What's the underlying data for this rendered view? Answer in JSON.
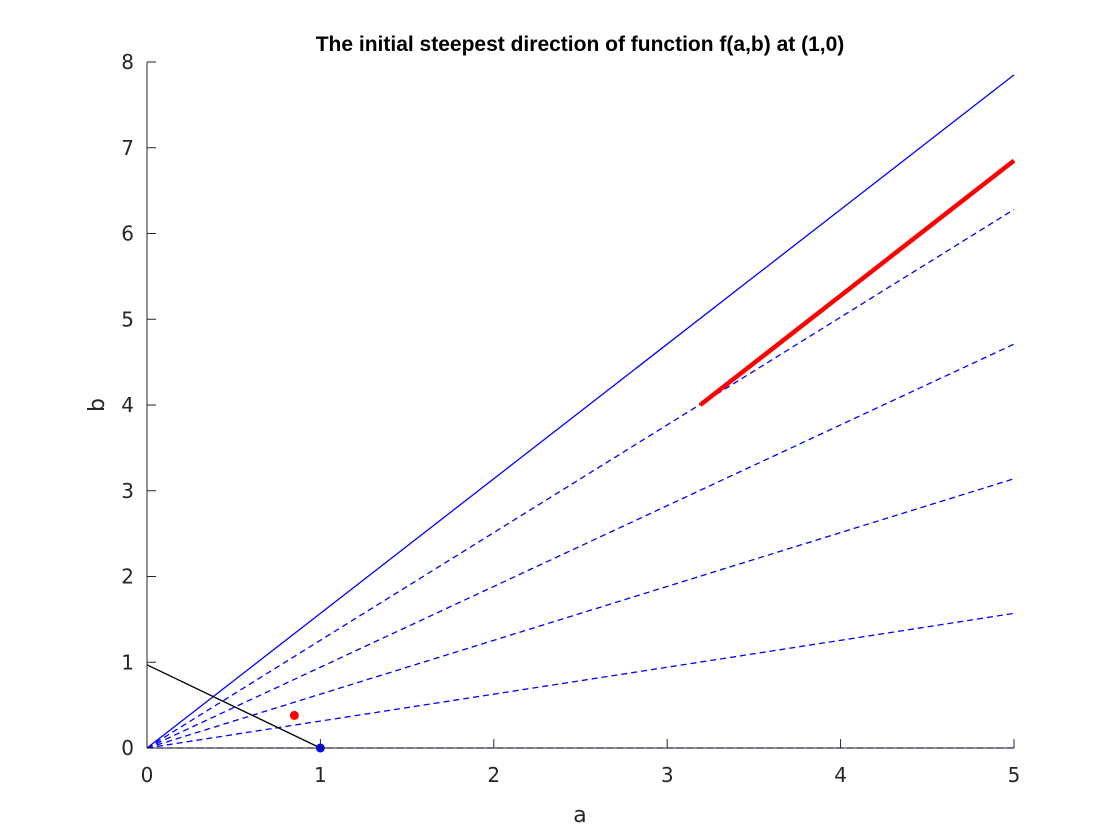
{
  "chart_data": {
    "type": "line",
    "title": "The initial steepest direction of function f(a,b) at (1,0)",
    "xlabel": "a",
    "ylabel": "b",
    "xlim": [
      0,
      5
    ],
    "ylim": [
      0,
      8
    ],
    "xticks": [
      "0",
      "1",
      "2",
      "3",
      "4",
      "5"
    ],
    "yticks": [
      "0",
      "1",
      "2",
      "3",
      "4",
      "5",
      "6",
      "7",
      "8"
    ],
    "grid": false,
    "legend": "none",
    "series": [
      {
        "style": "solid",
        "color": "#0000ff",
        "x": [
          0,
          5
        ],
        "y": [
          0,
          7.85
        ]
      },
      {
        "style": "dashed",
        "color": "#0000ff",
        "x": [
          0,
          5
        ],
        "y": [
          0,
          6.28
        ]
      },
      {
        "style": "dashed",
        "color": "#0000ff",
        "x": [
          0,
          5
        ],
        "y": [
          0,
          4.71
        ]
      },
      {
        "style": "dashed",
        "color": "#0000ff",
        "x": [
          0,
          5
        ],
        "y": [
          0,
          3.14
        ]
      },
      {
        "style": "dashed",
        "color": "#0000ff",
        "x": [
          0,
          5
        ],
        "y": [
          0,
          1.57
        ]
      },
      {
        "style": "dashed",
        "color": "#0000ff",
        "x": [
          0,
          5
        ],
        "y": [
          0,
          0
        ]
      },
      {
        "style": "solid",
        "color": "#000000",
        "x": [
          0,
          1
        ],
        "y": [
          0.97,
          0
        ]
      },
      {
        "style": "solid-thick",
        "color": "#ff0000",
        "x": [
          3.19,
          5
        ],
        "y": [
          4.0,
          6.85
        ]
      }
    ],
    "points": [
      {
        "color": "#0000ff",
        "x": 1.0,
        "y": 0.0
      },
      {
        "color": "#ff0000",
        "x": 0.85,
        "y": 0.38
      }
    ]
  }
}
